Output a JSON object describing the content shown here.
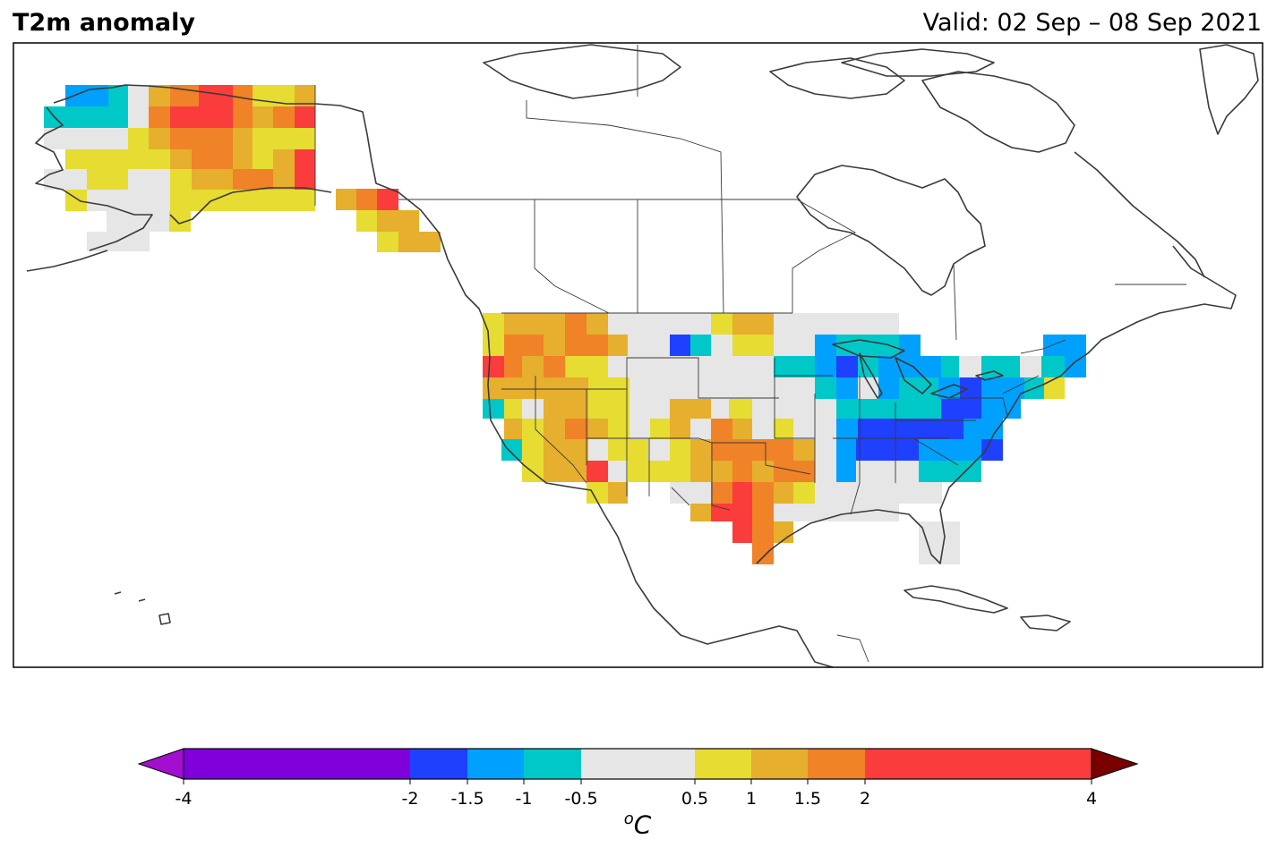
{
  "title": "T2m anomaly",
  "valid_text": "Valid: 02 Sep – 08 Sep 2021",
  "colorbar": {
    "unit_base": "C",
    "unit_sup": "o",
    "ticks": [
      "-4",
      "-2",
      "-1.5",
      "-1",
      "-0.5",
      "0.5",
      "1",
      "1.5",
      "2",
      "4"
    ],
    "under_color": "#a30fd0",
    "over_color": "#7a0000",
    "bins": [
      {
        "from": -4,
        "to": -2,
        "color": "#8000dc"
      },
      {
        "from": -2,
        "to": -1.5,
        "color": "#2040ff"
      },
      {
        "from": -1.5,
        "to": -1,
        "color": "#00a0ff"
      },
      {
        "from": -1,
        "to": -0.5,
        "color": "#00c8c8"
      },
      {
        "from": -0.5,
        "to": 0.5,
        "color": "#e6e6e6"
      },
      {
        "from": 0.5,
        "to": 1,
        "color": "#e6dc32"
      },
      {
        "from": 1,
        "to": 1.5,
        "color": "#e6af2d"
      },
      {
        "from": 1.5,
        "to": 2,
        "color": "#f08228"
      },
      {
        "from": 2,
        "to": 4,
        "color": "#fa3c3c"
      }
    ]
  }
}
